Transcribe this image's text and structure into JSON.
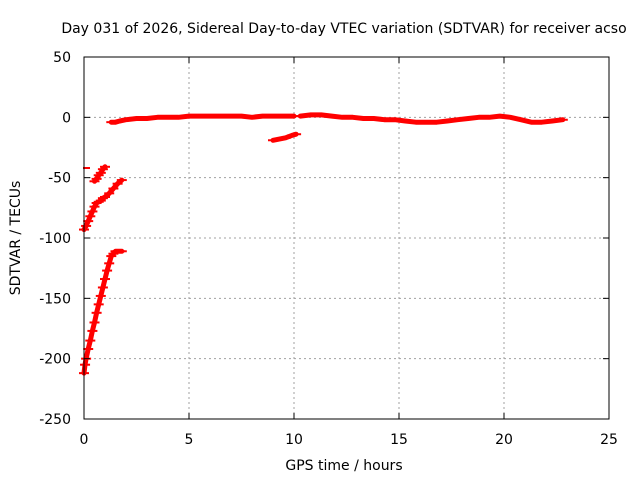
{
  "chart_data": {
    "type": "scatter",
    "title": "Day 031 of 2026, Sidereal Day-to-day VTEC variation (SDTVAR) for receiver acso",
    "xlabel": "GPS time / hours",
    "ylabel": "SDTVAR / TECUs",
    "xlim": [
      0,
      25
    ],
    "ylim": [
      -250,
      50
    ],
    "xticks": [
      "0",
      "5",
      "10",
      "15",
      "20",
      "25"
    ],
    "yticks": [
      "50",
      "0",
      "-50",
      "-100",
      "-150",
      "-200",
      "-250"
    ],
    "grid": true,
    "legend": "none",
    "series_color": "#ff0000",
    "series": [
      {
        "segments": [
          {
            "x": [
              0.0,
              0.05,
              0.1,
              0.2,
              0.3,
              0.4,
              0.5,
              0.6,
              0.7,
              0.8,
              0.9,
              1.0,
              1.1,
              1.2,
              1.3,
              1.4,
              1.5,
              1.6,
              1.7,
              1.8
            ],
            "y": [
              -212,
              -205,
              -200,
              -192,
              -185,
              -177,
              -170,
              -162,
              -155,
              -148,
              -141,
              -134,
              -127,
              -121,
              -115,
              -113,
              -111,
              -111,
              -111,
              -111
            ]
          },
          {
            "x": [
              0.0,
              0.1,
              0.2,
              0.3,
              0.4,
              0.5,
              0.6,
              0.7,
              0.8,
              0.9,
              1.0,
              1.2,
              1.4,
              1.6,
              1.8
            ],
            "y": [
              -93,
              -90,
              -86,
              -82,
              -78,
              -74,
              -71,
              -70,
              -69,
              -67,
              -66,
              -63,
              -59,
              -55,
              -52
            ]
          },
          {
            "x": [
              0.5,
              0.6,
              0.7,
              0.8,
              0.9,
              1.0
            ],
            "y": [
              -53,
              -51,
              -48,
              -46,
              -43,
              -41
            ]
          },
          {
            "x": [
              1.3,
              1.5,
              1.7,
              2.0,
              2.5,
              3.0,
              3.5,
              4.0,
              4.5,
              5.0,
              5.5,
              6.0,
              6.5,
              7.0,
              7.5,
              8.0,
              8.5,
              9.0,
              9.5,
              10.0
            ],
            "y": [
              -4,
              -4,
              -3,
              -2,
              -1,
              -1,
              0,
              0,
              0,
              1,
              1,
              1,
              1,
              1,
              1,
              0,
              1,
              1,
              1,
              1
            ]
          },
          {
            "x": [
              9.0,
              9.3,
              9.6,
              9.9,
              10.1
            ],
            "y": [
              -19,
              -18,
              -17,
              -15,
              -14
            ]
          },
          {
            "x": [
              10.3,
              10.8,
              11.3,
              11.8,
              12.3,
              12.8,
              13.3,
              13.8,
              14.3,
              14.8,
              15.3,
              15.8,
              16.3,
              16.8,
              17.3,
              17.8,
              18.3,
              18.8,
              19.3,
              19.8,
              20.3,
              20.8,
              21.3,
              21.8,
              22.3,
              22.8
            ],
            "y": [
              1,
              2,
              2,
              1,
              0,
              0,
              -1,
              -1,
              -2,
              -2,
              -3,
              -4,
              -4,
              -4,
              -3,
              -2,
              -1,
              0,
              0,
              1,
              0,
              -2,
              -4,
              -4,
              -3,
              -2
            ]
          }
        ],
        "points": [
          {
            "x": 0.0,
            "y": -42
          }
        ]
      }
    ]
  }
}
